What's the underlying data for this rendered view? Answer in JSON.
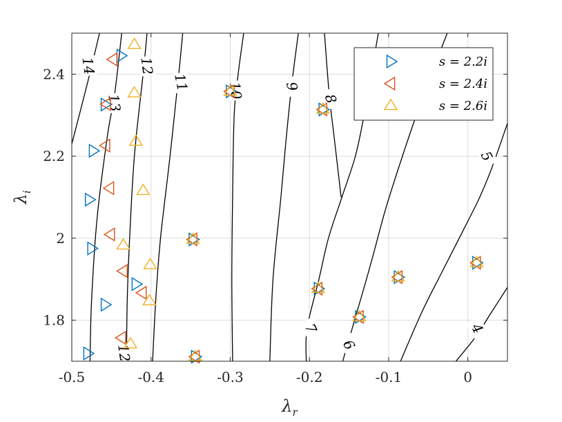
{
  "chart_data": {
    "type": "scatter",
    "xlabel": "λ_r",
    "ylabel": "λ_i",
    "xlim": [
      -0.5,
      0.05
    ],
    "ylim": [
      1.7,
      2.5
    ],
    "xticks": [
      -0.5,
      -0.4,
      -0.3,
      -0.2,
      -0.1,
      0
    ],
    "xtick_labels": [
      "-0.5",
      "-0.4",
      "-0.3",
      "-0.2",
      "-0.1",
      "0"
    ],
    "yticks": [
      1.8,
      2.0,
      2.2,
      2.4
    ],
    "ytick_labels": [
      "1.8",
      "2",
      "2.2",
      "2.4"
    ],
    "grid": true,
    "legend_position": "top-right",
    "series": [
      {
        "name": "s = 2.2i",
        "marker": "triangle-right",
        "color": "#0072BD",
        "points": [
          [
            -0.48,
            1.719
          ],
          [
            -0.475,
            1.975
          ],
          [
            -0.478,
            2.094
          ],
          [
            -0.473,
            2.213
          ],
          [
            -0.458,
            1.838
          ],
          [
            -0.458,
            2.326
          ],
          [
            -0.438,
            2.445
          ],
          [
            -0.419,
            1.888
          ],
          [
            -0.347,
            1.997
          ],
          [
            -0.344,
            1.711
          ],
          [
            -0.3,
            2.358
          ],
          [
            -0.189,
            1.877
          ],
          [
            -0.183,
            2.314
          ],
          [
            -0.137,
            1.808
          ],
          [
            -0.088,
            1.905
          ],
          [
            0.011,
            1.94
          ]
        ]
      },
      {
        "name": "s = 2.4i",
        "marker": "triangle-left",
        "color": "#D95319",
        "points": [
          [
            -0.437,
            1.757
          ],
          [
            -0.411,
            1.867
          ],
          [
            -0.435,
            1.92
          ],
          [
            -0.451,
            2.009
          ],
          [
            -0.452,
            2.122
          ],
          [
            -0.457,
            2.226
          ],
          [
            -0.456,
            2.327
          ],
          [
            -0.448,
            2.436
          ],
          [
            -0.347,
            1.997
          ],
          [
            -0.344,
            1.711
          ],
          [
            -0.3,
            2.358
          ],
          [
            -0.189,
            1.877
          ],
          [
            -0.183,
            2.314
          ],
          [
            -0.137,
            1.808
          ],
          [
            -0.088,
            1.905
          ],
          [
            0.011,
            1.94
          ]
        ]
      },
      {
        "name": "s = 2.6i",
        "marker": "triangle-up",
        "color": "#EDB120",
        "points": [
          [
            -0.426,
            1.742
          ],
          [
            -0.402,
            1.847
          ],
          [
            -0.401,
            1.935
          ],
          [
            -0.435,
            1.983
          ],
          [
            -0.41,
            2.116
          ],
          [
            -0.419,
            2.236
          ],
          [
            -0.421,
            2.354
          ],
          [
            -0.421,
            2.472
          ],
          [
            -0.347,
            1.997
          ],
          [
            -0.344,
            1.711
          ],
          [
            -0.3,
            2.358
          ],
          [
            -0.189,
            1.877
          ],
          [
            -0.183,
            2.314
          ],
          [
            -0.137,
            1.808
          ],
          [
            -0.088,
            1.905
          ],
          [
            0.011,
            1.94
          ]
        ]
      }
    ],
    "contours": [
      {
        "level": "14",
        "points": [
          [
            -0.5,
            2.23
          ],
          [
            -0.48,
            2.38
          ],
          [
            -0.465,
            2.5
          ]
        ]
      },
      {
        "level": "13",
        "points": [
          [
            -0.477,
            1.7
          ],
          [
            -0.475,
            1.85
          ],
          [
            -0.468,
            2.05
          ],
          [
            -0.455,
            2.25
          ],
          [
            -0.446,
            2.35
          ],
          [
            -0.437,
            2.5
          ]
        ]
      },
      {
        "level": "12",
        "points": [
          [
            -0.431,
            1.7
          ],
          [
            -0.43,
            1.85
          ],
          [
            -0.427,
            2.0
          ],
          [
            -0.421,
            2.2
          ],
          [
            -0.41,
            2.4
          ],
          [
            -0.405,
            2.5
          ]
        ]
      },
      {
        "level": "11",
        "points": [
          [
            -0.398,
            1.7
          ],
          [
            -0.394,
            1.85
          ],
          [
            -0.388,
            2.0
          ],
          [
            -0.376,
            2.2
          ],
          [
            -0.365,
            2.4
          ],
          [
            -0.36,
            2.5
          ]
        ]
      },
      {
        "level": "10",
        "points": [
          [
            -0.297,
            1.7
          ],
          [
            -0.298,
            1.9
          ],
          [
            -0.297,
            2.1
          ],
          [
            -0.295,
            2.3
          ],
          [
            -0.29,
            2.4
          ],
          [
            -0.283,
            2.5
          ]
        ]
      },
      {
        "level": "9",
        "points": [
          [
            -0.25,
            1.7
          ],
          [
            -0.246,
            1.9
          ],
          [
            -0.236,
            2.1
          ],
          [
            -0.229,
            2.25
          ],
          [
            -0.222,
            2.38
          ],
          [
            -0.214,
            2.5
          ]
        ]
      },
      {
        "level": "8",
        "points": [
          [
            -0.16,
            2.1
          ],
          [
            -0.169,
            2.25
          ],
          [
            -0.175,
            2.35
          ],
          [
            -0.181,
            2.5
          ]
        ]
      },
      {
        "level": "7",
        "points": [
          [
            -0.204,
            1.7
          ],
          [
            -0.203,
            1.78
          ],
          [
            -0.188,
            1.9
          ],
          [
            -0.176,
            2.0
          ],
          [
            -0.159,
            2.1
          ],
          [
            -0.142,
            2.2
          ],
          [
            -0.131,
            2.3
          ],
          [
            -0.122,
            2.4
          ],
          [
            -0.113,
            2.5
          ]
        ]
      },
      {
        "level": "6",
        "points": [
          [
            -0.158,
            1.7
          ],
          [
            -0.14,
            1.82
          ],
          [
            -0.128,
            1.9
          ],
          [
            -0.118,
            1.97
          ],
          [
            -0.104,
            2.07
          ],
          [
            -0.086,
            2.18
          ],
          [
            -0.065,
            2.3
          ],
          [
            -0.042,
            2.42
          ],
          [
            -0.026,
            2.5
          ]
        ]
      },
      {
        "level": "5",
        "points": [
          [
            -0.085,
            1.7
          ],
          [
            -0.058,
            1.82
          ],
          [
            -0.032,
            1.92
          ],
          [
            -0.003,
            2.03
          ],
          [
            0.015,
            2.1
          ],
          [
            0.03,
            2.17
          ],
          [
            0.05,
            2.28
          ]
        ]
      },
      {
        "level": "4",
        "points": [
          [
            -0.015,
            1.7
          ],
          [
            0.01,
            1.76
          ],
          [
            0.03,
            1.82
          ],
          [
            0.05,
            1.88
          ]
        ]
      }
    ],
    "contour_labels": [
      {
        "text": "14",
        "x": -0.479,
        "y": 2.42,
        "angle": 82
      },
      {
        "text": "13",
        "x": -0.446,
        "y": 2.33,
        "angle": 82
      },
      {
        "text": "12",
        "x": -0.405,
        "y": 2.42,
        "angle": 83
      },
      {
        "text": "11",
        "x": -0.362,
        "y": 2.38,
        "angle": 78
      },
      {
        "text": "10",
        "x": -0.293,
        "y": 2.36,
        "angle": 82
      },
      {
        "text": "9",
        "x": -0.222,
        "y": 2.37,
        "angle": 78
      },
      {
        "text": "8",
        "x": -0.173,
        "y": 2.34,
        "angle": 72
      },
      {
        "text": "7",
        "x": -0.198,
        "y": 1.78,
        "angle": 65
      },
      {
        "text": "6",
        "x": -0.15,
        "y": 1.74,
        "angle": 60
      },
      {
        "text": "5",
        "x": 0.024,
        "y": 2.2,
        "angle": 62
      },
      {
        "text": "4",
        "x": 0.012,
        "y": 1.78,
        "angle": 60
      },
      {
        "text": "12",
        "x": -0.434,
        "y": 1.72,
        "angle": 82
      }
    ]
  }
}
